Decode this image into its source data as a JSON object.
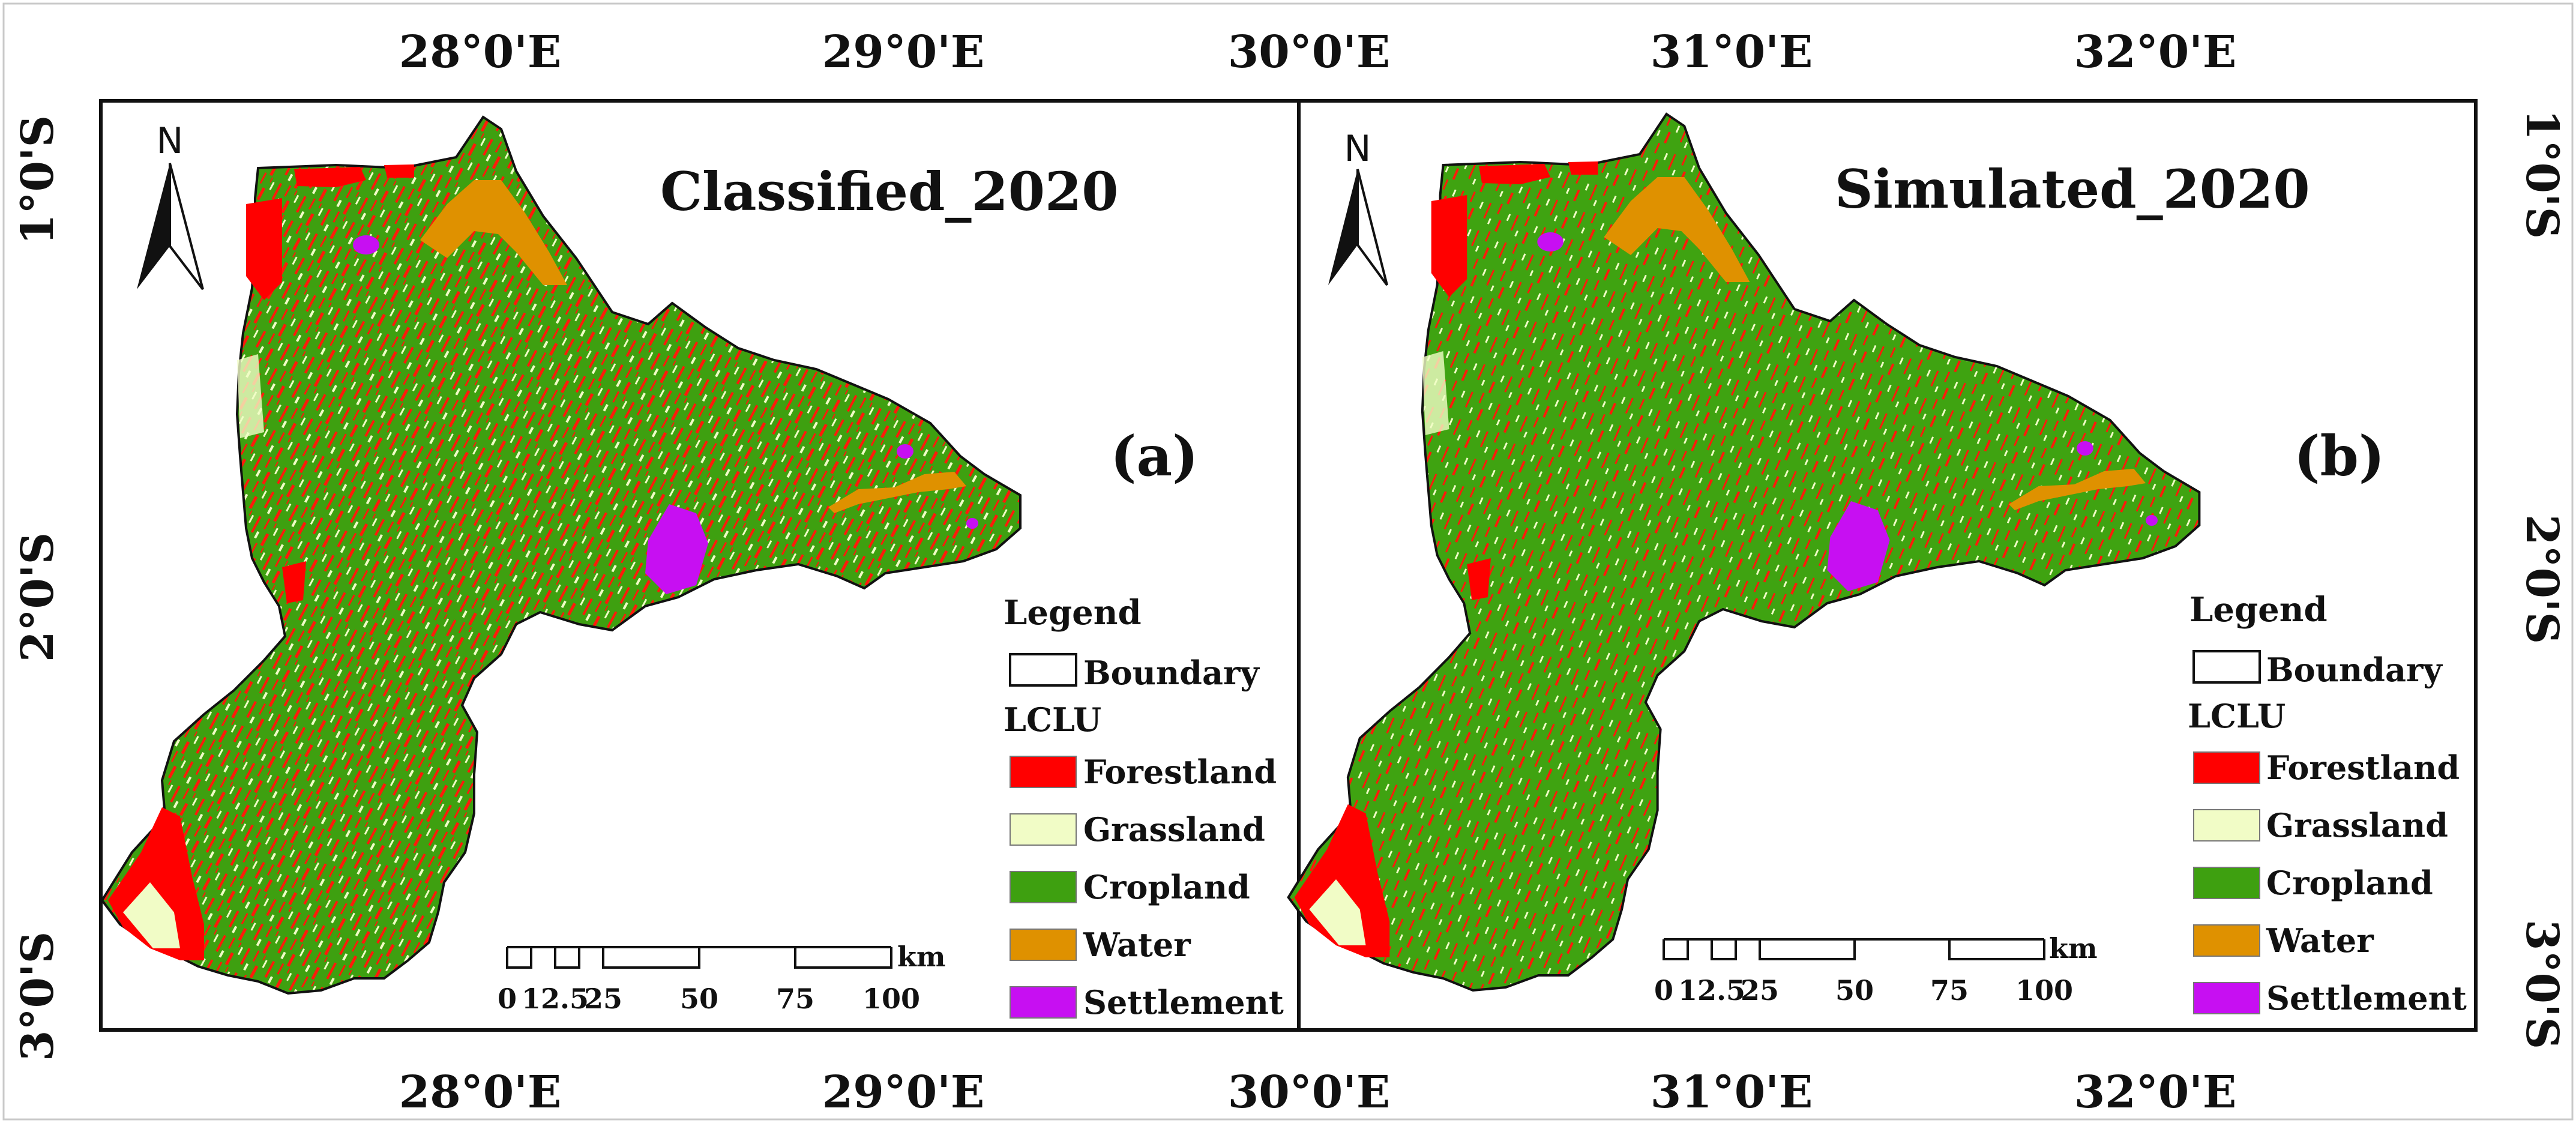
{
  "top_axis": [
    "28°0'E",
    "29°0'E",
    "30°0'E",
    "31°0'E",
    "32°0'E"
  ],
  "bottom_axis": [
    "28°0'E",
    "29°0'E",
    "30°0'E",
    "31°0'E",
    "32°0'E"
  ],
  "left_axis": [
    "1°0'S",
    "2°0'S",
    "3°0'S"
  ],
  "right_axis": [
    "1°0'S",
    "2°0'S",
    "3°0'S"
  ],
  "panels": [
    {
      "title": "Classified_2020",
      "letter": "(a)",
      "north": "N",
      "legend": {
        "heading": "Legend",
        "boundary_label": "Boundary",
        "class_heading": "LCLU",
        "items": [
          {
            "label": "Forestland",
            "color": "#ff0000"
          },
          {
            "label": "Grassland",
            "color": "#f1fcc6"
          },
          {
            "label": "Cropland",
            "color": "#3ea010"
          },
          {
            "label": "Water",
            "color": "#df9100"
          },
          {
            "label": "Settlement",
            "color": "#c70ff2"
          }
        ]
      },
      "scale": {
        "unit": "km",
        "ticks": [
          "0",
          "12.5",
          "25",
          "50",
          "75",
          "100"
        ]
      }
    },
    {
      "title": "Simulated_2020",
      "letter": "(b)",
      "north": "N",
      "legend": {
        "heading": "Legend",
        "boundary_label": "Boundary",
        "class_heading": "LCLU",
        "items": [
          {
            "label": "Forestland",
            "color": "#ff0000"
          },
          {
            "label": "Grassland",
            "color": "#f1fcc6"
          },
          {
            "label": "Cropland",
            "color": "#3ea010"
          },
          {
            "label": "Water",
            "color": "#df9100"
          },
          {
            "label": "Settlement",
            "color": "#c70ff2"
          }
        ]
      },
      "scale": {
        "unit": "km",
        "ticks": [
          "0",
          "12.5",
          "25",
          "50",
          "75",
          "100"
        ]
      }
    }
  ]
}
